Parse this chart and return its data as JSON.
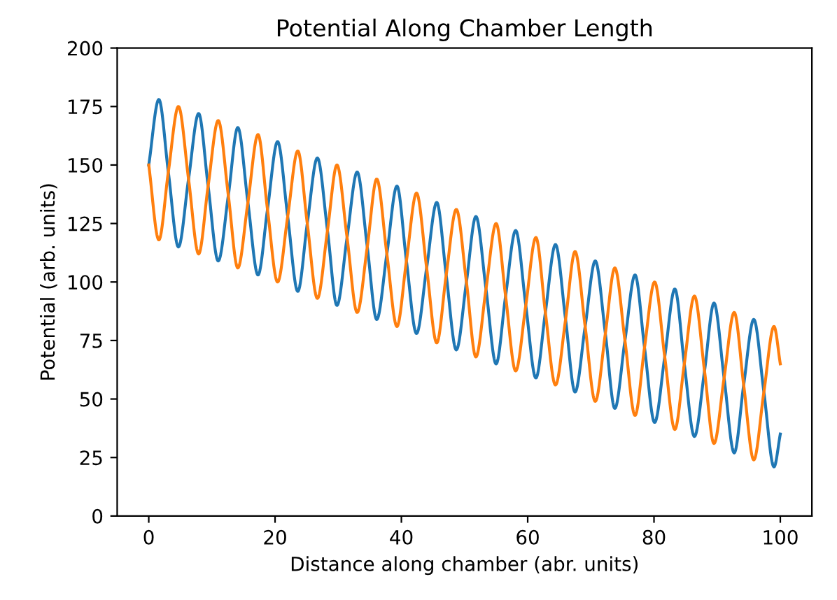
{
  "chart_data": {
    "type": "line",
    "title": "Potential Along Chamber Length",
    "xlabel": "Distance along chamber (abr. units)",
    "ylabel": "Potential (arb. units)",
    "x": [
      0,
      1.6,
      3.1,
      4.7,
      6.3,
      7.9,
      9.4,
      11.0,
      12.6,
      14.1,
      15.7,
      17.3,
      18.8,
      20.4,
      22.0,
      23.6,
      25.1,
      26.7,
      28.3,
      29.8,
      31.4,
      33.0,
      34.6,
      36.1,
      37.7,
      39.3,
      40.8,
      42.4,
      44.0,
      45.6,
      47.1,
      48.7,
      50.3,
      51.8,
      53.4,
      55.0,
      56.5,
      58.1,
      59.7,
      61.3,
      62.8,
      64.4,
      66.0,
      67.5,
      69.1,
      70.7,
      72.3,
      73.8,
      75.4,
      77.0,
      78.5,
      80.1,
      81.7,
      83.3,
      84.8,
      86.4,
      88.0,
      89.5,
      91.1,
      92.7,
      94.2,
      95.8,
      97.4,
      99.0,
      100
    ],
    "series": [
      {
        "color": "#1f77b4",
        "values": [
          150,
          178,
          147,
          115,
          144,
          172,
          141,
          109,
          137,
          166,
          134,
          103,
          131,
          160,
          128,
          96,
          125,
          153,
          122,
          90,
          119,
          147,
          115,
          84,
          112,
          141,
          109,
          78,
          106,
          134,
          103,
          71,
          100,
          128,
          97,
          65,
          94,
          122,
          90,
          59,
          87,
          116,
          84,
          53,
          81,
          109,
          78,
          46,
          75,
          103,
          72,
          40,
          68,
          97,
          65,
          34,
          62,
          91,
          59,
          27,
          56,
          84,
          53,
          21,
          35
        ]
      },
      {
        "color": "#ff7f0e",
        "values": [
          150,
          118,
          147,
          175,
          144,
          112,
          141,
          169,
          137,
          106,
          134,
          163,
          131,
          100,
          128,
          156,
          125,
          93,
          122,
          150,
          119,
          87,
          115,
          144,
          112,
          81,
          109,
          138,
          106,
          74,
          103,
          131,
          100,
          68,
          97,
          125,
          94,
          62,
          90,
          119,
          87,
          56,
          84,
          113,
          81,
          49,
          78,
          106,
          75,
          43,
          72,
          100,
          68,
          37,
          65,
          94,
          62,
          31,
          59,
          87,
          56,
          24,
          53,
          81,
          65
        ]
      }
    ],
    "xlim": [
      -5,
      105
    ],
    "xticks": [
      0,
      20,
      40,
      60,
      80,
      100
    ],
    "ylim": [
      0,
      200
    ],
    "yticks": [
      0,
      25,
      50,
      75,
      100,
      125,
      150,
      175,
      200
    ],
    "grid": false,
    "marker": "none",
    "line_style": "solid"
  }
}
